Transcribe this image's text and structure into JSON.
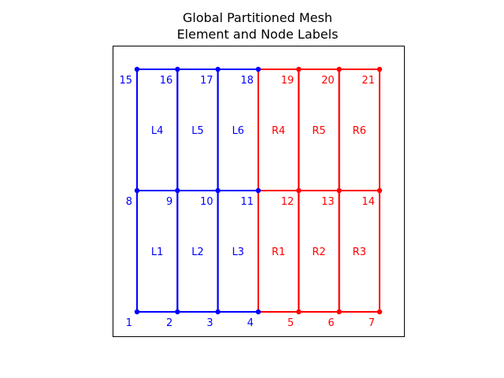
{
  "title_line1": "Global Partitioned Mesh",
  "title_line2": "Element and Node Labels",
  "colors": {
    "left": "#0000ff",
    "right": "#ff0000",
    "axes": "#000000"
  },
  "chart_data": {
    "type": "mesh",
    "grid_x": [
      0,
      1,
      2,
      3,
      4,
      5,
      6
    ],
    "grid_y": [
      0,
      1,
      2
    ],
    "nodes": [
      {
        "id": "1",
        "x": 0,
        "y": 0,
        "part": "left"
      },
      {
        "id": "2",
        "x": 1,
        "y": 0,
        "part": "left"
      },
      {
        "id": "3",
        "x": 2,
        "y": 0,
        "part": "left"
      },
      {
        "id": "4",
        "x": 3,
        "y": 0,
        "part": "left"
      },
      {
        "id": "5",
        "x": 4,
        "y": 0,
        "part": "right"
      },
      {
        "id": "6",
        "x": 5,
        "y": 0,
        "part": "right"
      },
      {
        "id": "7",
        "x": 6,
        "y": 0,
        "part": "right"
      },
      {
        "id": "8",
        "x": 0,
        "y": 1,
        "part": "left"
      },
      {
        "id": "9",
        "x": 1,
        "y": 1,
        "part": "left"
      },
      {
        "id": "10",
        "x": 2,
        "y": 1,
        "part": "left"
      },
      {
        "id": "11",
        "x": 3,
        "y": 1,
        "part": "left"
      },
      {
        "id": "12",
        "x": 4,
        "y": 1,
        "part": "right"
      },
      {
        "id": "13",
        "x": 5,
        "y": 1,
        "part": "right"
      },
      {
        "id": "14",
        "x": 6,
        "y": 1,
        "part": "right"
      },
      {
        "id": "15",
        "x": 0,
        "y": 2,
        "part": "left"
      },
      {
        "id": "16",
        "x": 1,
        "y": 2,
        "part": "left"
      },
      {
        "id": "17",
        "x": 2,
        "y": 2,
        "part": "left"
      },
      {
        "id": "18",
        "x": 3,
        "y": 2,
        "part": "left"
      },
      {
        "id": "19",
        "x": 4,
        "y": 2,
        "part": "right"
      },
      {
        "id": "20",
        "x": 5,
        "y": 2,
        "part": "right"
      },
      {
        "id": "21",
        "x": 6,
        "y": 2,
        "part": "right"
      }
    ],
    "elements": [
      {
        "id": "L1",
        "x0": 0,
        "y0": 0,
        "part": "left"
      },
      {
        "id": "L2",
        "x0": 1,
        "y0": 0,
        "part": "left"
      },
      {
        "id": "L3",
        "x0": 2,
        "y0": 0,
        "part": "left"
      },
      {
        "id": "R1",
        "x0": 3,
        "y0": 0,
        "part": "right"
      },
      {
        "id": "R2",
        "x0": 4,
        "y0": 0,
        "part": "right"
      },
      {
        "id": "R3",
        "x0": 5,
        "y0": 0,
        "part": "right"
      },
      {
        "id": "L4",
        "x0": 0,
        "y0": 1,
        "part": "left"
      },
      {
        "id": "L5",
        "x0": 1,
        "y0": 1,
        "part": "left"
      },
      {
        "id": "L6",
        "x0": 2,
        "y0": 1,
        "part": "left"
      },
      {
        "id": "R4",
        "x0": 3,
        "y0": 1,
        "part": "right"
      },
      {
        "id": "R5",
        "x0": 4,
        "y0": 1,
        "part": "right"
      },
      {
        "id": "R6",
        "x0": 5,
        "y0": 1,
        "part": "right"
      }
    ]
  }
}
